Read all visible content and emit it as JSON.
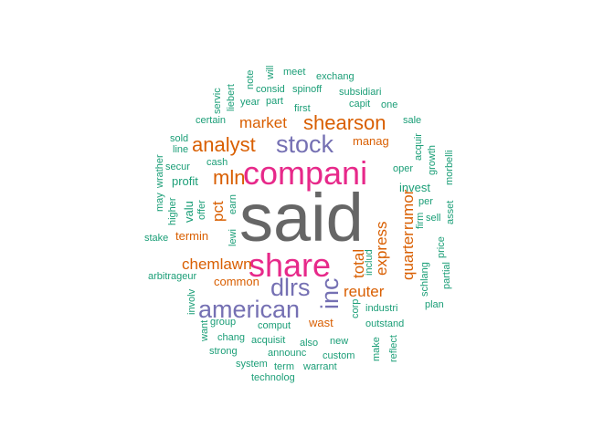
{
  "colors": {
    "teal": "#1B9E77",
    "orange": "#D95F02",
    "purple": "#7570B3",
    "pink": "#E7298A",
    "gray": "#666666"
  },
  "words": [
    {
      "id": "said",
      "text": "said",
      "color": "gray"
    },
    {
      "id": "companies",
      "text": "compani",
      "color": "pink"
    },
    {
      "id": "share",
      "text": "share",
      "color": "pink"
    },
    {
      "id": "stock",
      "text": "stock",
      "color": "purple"
    },
    {
      "id": "american",
      "text": "american",
      "color": "purple"
    },
    {
      "id": "dlrs",
      "text": "dlrs",
      "color": "purple"
    },
    {
      "id": "inc",
      "text": "inc",
      "color": "purple"
    },
    {
      "id": "shearson",
      "text": "shearson",
      "color": "orange"
    },
    {
      "id": "market",
      "text": "market",
      "color": "orange"
    },
    {
      "id": "analyst",
      "text": "analyst",
      "color": "orange"
    },
    {
      "id": "mln",
      "text": "mln",
      "color": "orange"
    },
    {
      "id": "chemlawn",
      "text": "chemlawn",
      "color": "orange"
    },
    {
      "id": "reuter",
      "text": "reuter",
      "color": "orange"
    },
    {
      "id": "express",
      "text": "express",
      "color": "orange"
    },
    {
      "id": "rumor",
      "text": "rumor",
      "color": "orange"
    },
    {
      "id": "quarter",
      "text": "quarter",
      "color": "orange"
    },
    {
      "id": "total",
      "text": "total",
      "color": "orange"
    },
    {
      "id": "pct",
      "text": "pct",
      "color": "orange"
    },
    {
      "id": "common",
      "text": "common",
      "color": "orange"
    },
    {
      "id": "termin",
      "text": "termin",
      "color": "orange"
    },
    {
      "id": "manag",
      "text": "manag",
      "color": "orange"
    },
    {
      "id": "wast",
      "text": "wast",
      "color": "orange"
    },
    {
      "id": "will",
      "text": "will",
      "color": "teal"
    },
    {
      "id": "meet",
      "text": "meet",
      "color": "teal"
    },
    {
      "id": "exchang",
      "text": "exchang",
      "color": "teal"
    },
    {
      "id": "note",
      "text": "note",
      "color": "teal"
    },
    {
      "id": "consid",
      "text": "consid",
      "color": "teal"
    },
    {
      "id": "spinoff",
      "text": "spinoff",
      "color": "teal"
    },
    {
      "id": "servic",
      "text": "servic",
      "color": "teal"
    },
    {
      "id": "liebert",
      "text": "liebert",
      "color": "teal"
    },
    {
      "id": "subsidiari",
      "text": "subsidiari",
      "color": "teal"
    },
    {
      "id": "year",
      "text": "year",
      "color": "teal"
    },
    {
      "id": "part",
      "text": "part",
      "color": "teal"
    },
    {
      "id": "capit",
      "text": "capit",
      "color": "teal"
    },
    {
      "id": "one",
      "text": "one",
      "color": "teal"
    },
    {
      "id": "first",
      "text": "first",
      "color": "teal"
    },
    {
      "id": "certain",
      "text": "certain",
      "color": "teal"
    },
    {
      "id": "sale",
      "text": "sale",
      "color": "teal"
    },
    {
      "id": "sold",
      "text": "sold",
      "color": "teal"
    },
    {
      "id": "line",
      "text": "line",
      "color": "teal"
    },
    {
      "id": "cash",
      "text": "cash",
      "color": "teal"
    },
    {
      "id": "acquir",
      "text": "acquir",
      "color": "teal"
    },
    {
      "id": "growth",
      "text": "growth",
      "color": "teal"
    },
    {
      "id": "morbelli",
      "text": "morbelli",
      "color": "teal"
    },
    {
      "id": "wrather",
      "text": "wrather",
      "color": "teal"
    },
    {
      "id": "secur",
      "text": "secur",
      "color": "teal"
    },
    {
      "id": "oper",
      "text": "oper",
      "color": "teal"
    },
    {
      "id": "profit",
      "text": "profit",
      "color": "teal"
    },
    {
      "id": "invest",
      "text": "invest",
      "color": "teal"
    },
    {
      "id": "may",
      "text": "may",
      "color": "teal"
    },
    {
      "id": "higher",
      "text": "higher",
      "color": "teal"
    },
    {
      "id": "valu",
      "text": "valu",
      "color": "teal"
    },
    {
      "id": "offer",
      "text": "offer",
      "color": "teal"
    },
    {
      "id": "earn",
      "text": "earn",
      "color": "teal"
    },
    {
      "id": "per",
      "text": "per",
      "color": "teal"
    },
    {
      "id": "firm",
      "text": "firm",
      "color": "teal"
    },
    {
      "id": "asset",
      "text": "asset",
      "color": "teal"
    },
    {
      "id": "sell",
      "text": "sell",
      "color": "teal"
    },
    {
      "id": "stake",
      "text": "stake",
      "color": "teal"
    },
    {
      "id": "lewi",
      "text": "lewi",
      "color": "teal"
    },
    {
      "id": "price",
      "text": "price",
      "color": "teal"
    },
    {
      "id": "includ",
      "text": "includ",
      "color": "teal"
    },
    {
      "id": "schlang",
      "text": "schlang",
      "color": "teal"
    },
    {
      "id": "partial",
      "text": "partial",
      "color": "teal"
    },
    {
      "id": "arbitrageur",
      "text": "arbitrageur",
      "color": "teal"
    },
    {
      "id": "corp",
      "text": "corp",
      "color": "teal"
    },
    {
      "id": "involv",
      "text": "involv",
      "color": "teal"
    },
    {
      "id": "industri",
      "text": "industri",
      "color": "teal"
    },
    {
      "id": "plan",
      "text": "plan",
      "color": "teal"
    },
    {
      "id": "group",
      "text": "group",
      "color": "teal"
    },
    {
      "id": "comput",
      "text": "comput",
      "color": "teal"
    },
    {
      "id": "outstand",
      "text": "outstand",
      "color": "teal"
    },
    {
      "id": "want",
      "text": "want",
      "color": "teal"
    },
    {
      "id": "chang",
      "text": "chang",
      "color": "teal"
    },
    {
      "id": "acquisit",
      "text": "acquisit",
      "color": "teal"
    },
    {
      "id": "also",
      "text": "also",
      "color": "teal"
    },
    {
      "id": "new",
      "text": "new",
      "color": "teal"
    },
    {
      "id": "make",
      "text": "make",
      "color": "teal"
    },
    {
      "id": "reflect",
      "text": "reflect",
      "color": "teal"
    },
    {
      "id": "strong",
      "text": "strong",
      "color": "teal"
    },
    {
      "id": "announc",
      "text": "announc",
      "color": "teal"
    },
    {
      "id": "custom",
      "text": "custom",
      "color": "teal"
    },
    {
      "id": "system",
      "text": "system",
      "color": "teal"
    },
    {
      "id": "term",
      "text": "term",
      "color": "teal"
    },
    {
      "id": "warrant",
      "text": "warrant",
      "color": "teal"
    },
    {
      "id": "technolog",
      "text": "technolog",
      "color": "teal"
    }
  ]
}
